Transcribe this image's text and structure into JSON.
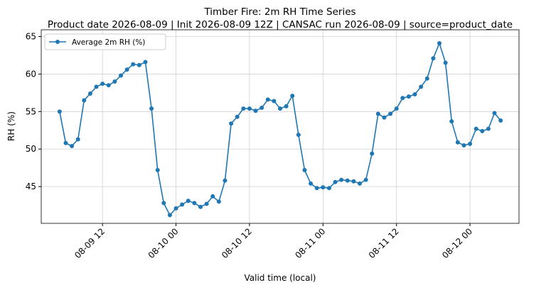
{
  "chart_data": {
    "type": "line",
    "title": "Timber Fire: 2m RH Time Series",
    "subtitle": "Product date 2026-08-09 | Init 2026-08-09 12Z | CANSAC run 2026-08-09 | source=product_date",
    "x_label": "Valid time (local)",
    "y_label": "RH (%)",
    "x": [
      "08-09 05",
      "08-09 06",
      "08-09 07",
      "08-09 08",
      "08-09 09",
      "08-09 10",
      "08-09 11",
      "08-09 12",
      "08-09 13",
      "08-09 14",
      "08-09 15",
      "08-09 16",
      "08-09 17",
      "08-09 18",
      "08-09 19",
      "08-09 20",
      "08-09 21",
      "08-09 22",
      "08-09 23",
      "08-10 00",
      "08-10 01",
      "08-10 02",
      "08-10 03",
      "08-10 04",
      "08-10 05",
      "08-10 06",
      "08-10 07",
      "08-10 08",
      "08-10 09",
      "08-10 10",
      "08-10 11",
      "08-10 12",
      "08-10 13",
      "08-10 14",
      "08-10 15",
      "08-10 16",
      "08-10 17",
      "08-10 18",
      "08-10 19",
      "08-10 20",
      "08-10 21",
      "08-10 22",
      "08-10 23",
      "08-11 00",
      "08-11 01",
      "08-11 02",
      "08-11 03",
      "08-11 04",
      "08-11 05",
      "08-11 06",
      "08-11 07",
      "08-11 08",
      "08-11 09",
      "08-11 10",
      "08-11 11",
      "08-11 12",
      "08-11 13",
      "08-11 14",
      "08-11 15",
      "08-11 16",
      "08-11 17",
      "08-11 18",
      "08-11 19",
      "08-11 20",
      "08-11 21",
      "08-11 22",
      "08-11 23",
      "08-12 00",
      "08-12 01",
      "08-12 02",
      "08-12 03",
      "08-12 04",
      "08-12 05"
    ],
    "series": [
      {
        "name": "Average 2m RH (%)",
        "color": "#1f77b4",
        "values": [
          55.0,
          50.8,
          50.4,
          51.3,
          56.5,
          57.4,
          58.3,
          58.7,
          58.5,
          59.0,
          59.8,
          60.6,
          61.3,
          61.2,
          61.6,
          55.4,
          47.2,
          42.8,
          41.2,
          42.1,
          42.6,
          43.1,
          42.8,
          42.3,
          42.7,
          43.7,
          43.0,
          45.8,
          53.4,
          54.3,
          55.4,
          55.4,
          55.1,
          55.5,
          56.6,
          56.4,
          55.4,
          55.7,
          57.1,
          51.9,
          47.2,
          45.4,
          44.8,
          44.9,
          44.8,
          45.6,
          45.9,
          45.8,
          45.7,
          45.4,
          45.9,
          49.4,
          54.7,
          54.2,
          54.7,
          55.4,
          56.8,
          57.0,
          57.3,
          58.3,
          59.4,
          62.1,
          64.1,
          61.5,
          53.7,
          50.9,
          50.5,
          50.7,
          52.7,
          52.4,
          52.7,
          54.8,
          53.8
        ]
      }
    ],
    "xlim": [
      "08-09 02",
      "08-12 08"
    ],
    "xticks": [
      "08-09 12",
      "08-10 00",
      "08-10 12",
      "08-11 00",
      "08-11 12",
      "08-12 00"
    ],
    "ylim": [
      40.1,
      65.9
    ],
    "yticks": [
      45,
      50,
      55,
      60,
      65
    ],
    "grid": true,
    "legend": "upper left"
  }
}
